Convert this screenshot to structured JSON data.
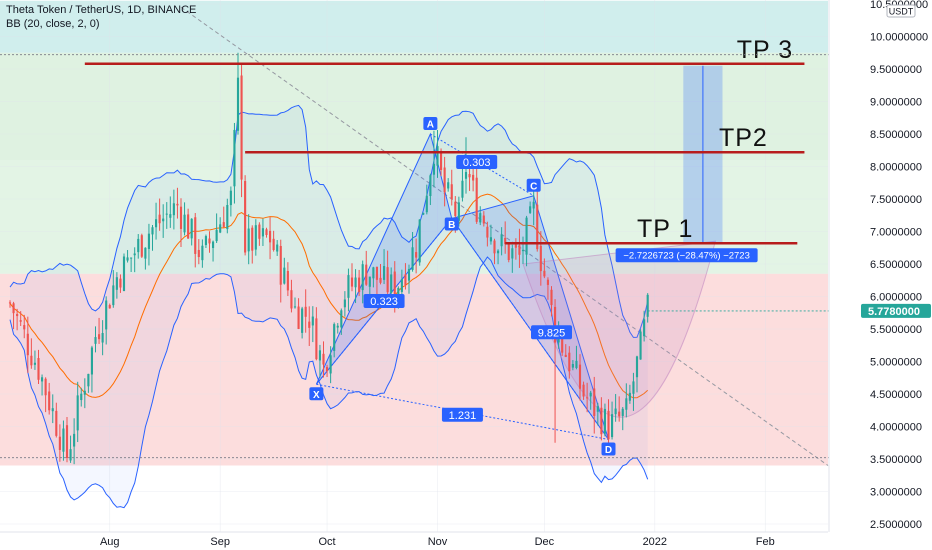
{
  "header": {
    "title": "Theta Token / TetherUS, 1D, BINANCE",
    "indicator": "BB (20, close, 2, 0)"
  },
  "currency": "USDT",
  "last_price": "5.7780000",
  "colors": {
    "up": "#26a69a",
    "down": "#ef5350",
    "bb_band": "#2962ff",
    "bb_basis": "#ff6d00",
    "pattern": "#2962ff",
    "target_line": "#b71c1c",
    "zone_green": "#d9f0dc",
    "zone_teal": "#c8ebea",
    "zone_red": "#fbd7d7"
  },
  "chart_data": {
    "type": "candlestick",
    "symbol": "THETA/USDT",
    "interval": "1D",
    "ylim": [
      2.5,
      10.5
    ],
    "y_ticks": [
      "10.5000000",
      "10.0000000",
      "9.5000000",
      "9.0000000",
      "8.5000000",
      "8.0000000",
      "7.5000000",
      "7.0000000",
      "6.5000000",
      "6.0000000",
      "5.5000000",
      "5.0000000",
      "4.5000000",
      "4.0000000",
      "3.5000000",
      "3.0000000",
      "2.5000000"
    ],
    "x_ticks": [
      {
        "label": "Aug",
        "date": "2021-08-01"
      },
      {
        "label": "Sep",
        "date": "2021-09-01"
      },
      {
        "label": "Oct",
        "date": "2021-10-01"
      },
      {
        "label": "Nov",
        "date": "2021-11-01"
      },
      {
        "label": "Dec",
        "date": "2021-12-01"
      },
      {
        "label": "2022",
        "date": "2022-01-01"
      },
      {
        "label": "Feb",
        "date": "2022-02-01"
      }
    ],
    "xlim": [
      "2021-07-04",
      "2022-02-13"
    ],
    "price_anchors": [
      {
        "date": "2021-07-04",
        "close": 5.9
      },
      {
        "date": "2021-07-12",
        "close": 4.9
      },
      {
        "date": "2021-07-20",
        "close": 3.55
      },
      {
        "date": "2021-07-28",
        "close": 5.4
      },
      {
        "date": "2021-08-03",
        "close": 6.3
      },
      {
        "date": "2021-08-12",
        "close": 7.0
      },
      {
        "date": "2021-08-20",
        "close": 7.4
      },
      {
        "date": "2021-08-27",
        "close": 6.6
      },
      {
        "date": "2021-09-04",
        "close": 7.5
      },
      {
        "date": "2021-09-06",
        "close": 9.2
      },
      {
        "date": "2021-09-08",
        "close": 6.8
      },
      {
        "date": "2021-09-15",
        "close": 6.9
      },
      {
        "date": "2021-09-22",
        "close": 5.8
      },
      {
        "date": "2021-09-26",
        "close": 5.7
      },
      {
        "date": "2021-09-30",
        "close": 4.9
      },
      {
        "date": "2021-10-05",
        "close": 6.0
      },
      {
        "date": "2021-10-12",
        "close": 6.4
      },
      {
        "date": "2021-10-20",
        "close": 6.1
      },
      {
        "date": "2021-10-26",
        "close": 6.8
      },
      {
        "date": "2021-10-31",
        "close": 8.3
      },
      {
        "date": "2021-11-03",
        "close": 7.6
      },
      {
        "date": "2021-11-07",
        "close": 7.2
      },
      {
        "date": "2021-11-09",
        "close": 8.0
      },
      {
        "date": "2021-11-12",
        "close": 7.4
      },
      {
        "date": "2021-11-18",
        "close": 6.8
      },
      {
        "date": "2021-11-24",
        "close": 6.6
      },
      {
        "date": "2021-11-28",
        "close": 7.3
      },
      {
        "date": "2021-11-30",
        "close": 6.6
      },
      {
        "date": "2021-12-04",
        "close": 5.5
      },
      {
        "date": "2021-12-12",
        "close": 4.5
      },
      {
        "date": "2021-12-19",
        "close": 4.0
      },
      {
        "date": "2021-12-24",
        "close": 4.2
      },
      {
        "date": "2021-12-28",
        "close": 5.2
      },
      {
        "date": "2021-12-30",
        "close": 5.778
      }
    ],
    "pattern": {
      "points": [
        {
          "label": "X",
          "date": "2021-09-28",
          "price": 4.65
        },
        {
          "label": "A",
          "date": "2021-10-30",
          "price": 8.5
        },
        {
          "label": "B",
          "date": "2021-11-05",
          "price": 7.2
        },
        {
          "label": "C",
          "date": "2021-11-28",
          "price": 7.55
        },
        {
          "label": "D",
          "date": "2021-12-19",
          "price": 3.8
        }
      ],
      "ratios": [
        {
          "text": "0.303",
          "date": "2021-11-12",
          "price": 8.07
        },
        {
          "text": "0.323",
          "date": "2021-10-17",
          "price": 5.93
        },
        {
          "text": "9.825",
          "date": "2021-12-03",
          "price": 5.45
        },
        {
          "text": "1.231",
          "date": "2021-11-08",
          "price": 4.18
        }
      ]
    },
    "targets": [
      {
        "text": "TP 1",
        "price": 6.82,
        "date_start": "2021-11-20",
        "date_end": "2022-02-10"
      },
      {
        "text": "TP2",
        "price": 8.22,
        "date_start": "2021-09-08",
        "date_end": "2022-02-12"
      },
      {
        "text": "TP 3",
        "price": 9.58,
        "date_start": "2021-07-25",
        "date_end": "2022-02-12"
      }
    ],
    "measure": {
      "text": "−2.7226723 (−28.47%) −2723",
      "date_start": "2022-01-09",
      "date_end": "2022-01-20",
      "price_from": 9.55,
      "price_to": 6.82
    },
    "zones": [
      {
        "name": "green",
        "from": 6.35,
        "to": 9.75
      },
      {
        "name": "teal",
        "from": 9.75,
        "to": 10.55
      },
      {
        "name": "red",
        "from": 3.4,
        "to": 6.35
      }
    ]
  }
}
